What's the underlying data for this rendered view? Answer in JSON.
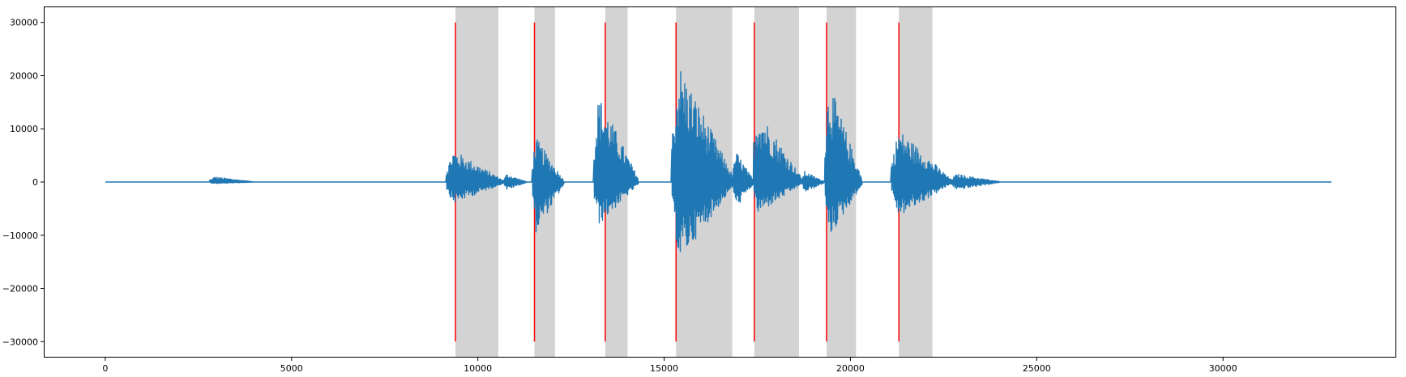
{
  "chart_data": {
    "type": "line",
    "title": "",
    "xlabel": "",
    "ylabel": "",
    "xlim": [
      -1650,
      34650
    ],
    "ylim": [
      -33000,
      33000
    ],
    "x_ticks": [
      0,
      5000,
      10000,
      15000,
      20000,
      25000,
      30000
    ],
    "x_tick_labels": [
      "0",
      "5000",
      "10000",
      "15000",
      "20000",
      "25000",
      "30000"
    ],
    "y_ticks": [
      30000,
      20000,
      10000,
      0,
      -10000,
      -20000,
      -30000
    ],
    "y_tick_labels": [
      "30000",
      "20000",
      "10000",
      "0",
      "−10000",
      "−20000",
      "−30000"
    ],
    "grid": false,
    "legend": "none",
    "colors": {
      "waveform": "#1f77b4",
      "onset_lines": "#ff0000",
      "regions": "#d3d3d3"
    },
    "series": [
      {
        "type": "line",
        "x_range": [
          0,
          32900
        ],
        "sample_count": 32900,
        "baseline": 0,
        "bursts": [
          {
            "start": 2800,
            "end": 4000,
            "peak_pos": 1000,
            "peak_neg": -300
          },
          {
            "start": 9150,
            "end": 10700,
            "peak_pos": 6000,
            "peak_neg": -4000
          },
          {
            "start": 10700,
            "end": 11300,
            "peak_pos": 1500,
            "peak_neg": -1500
          },
          {
            "start": 11450,
            "end": 12300,
            "peak_pos": 8500,
            "peak_neg": -9500
          },
          {
            "start": 13100,
            "end": 14300,
            "peak_pos": 16500,
            "peak_neg": -8000
          },
          {
            "start": 15200,
            "end": 16850,
            "peak_pos": 22500,
            "peak_neg": -15000
          },
          {
            "start": 16850,
            "end": 17400,
            "peak_pos": 6000,
            "peak_neg": -5000
          },
          {
            "start": 17350,
            "end": 18700,
            "peak_pos": 14000,
            "peak_neg": -6000
          },
          {
            "start": 18700,
            "end": 19300,
            "peak_pos": 2000,
            "peak_neg": -2000
          },
          {
            "start": 19300,
            "end": 20300,
            "peak_pos": 19000,
            "peak_neg": -10500
          },
          {
            "start": 21100,
            "end": 22700,
            "peak_pos": 10000,
            "peak_neg": -6500
          },
          {
            "start": 22700,
            "end": 24000,
            "peak_pos": 1500,
            "peak_neg": -1500
          }
        ]
      }
    ],
    "onset_lines": {
      "x": [
        9400,
        11520,
        13420,
        15320,
        17420,
        19360,
        21300
      ],
      "y_range": [
        -30000,
        30000
      ]
    },
    "shaded_regions": [
      {
        "start": 9400,
        "end": 10550
      },
      {
        "start": 11520,
        "end": 12070
      },
      {
        "start": 13420,
        "end": 14020
      },
      {
        "start": 15320,
        "end": 16830
      },
      {
        "start": 17420,
        "end": 18620
      },
      {
        "start": 19360,
        "end": 20150
      },
      {
        "start": 21300,
        "end": 22200
      }
    ]
  }
}
